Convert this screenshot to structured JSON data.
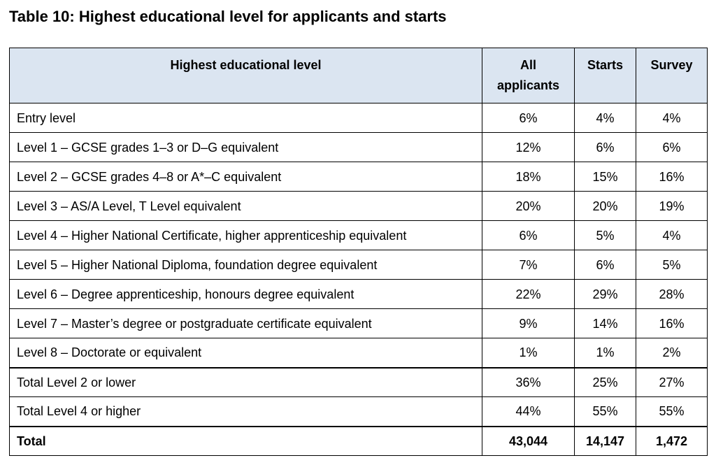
{
  "caption": "Table 10: Highest educational level for applicants and starts",
  "table": {
    "headers": {
      "level": "Highest educational level",
      "all_line1": "All",
      "all_line2": "applicants",
      "starts": "Starts",
      "survey": "Survey"
    },
    "rows": [
      {
        "level": "Entry level",
        "all": "6%",
        "starts": "4%",
        "survey": "4%"
      },
      {
        "level": "Level 1 – GCSE grades 1–3 or D–G equivalent",
        "all": "12%",
        "starts": "6%",
        "survey": "6%"
      },
      {
        "level": "Level 2 – GCSE grades 4–8 or A*–C equivalent",
        "all": "18%",
        "starts": "15%",
        "survey": "16%"
      },
      {
        "level": "Level 3 – AS/A Level, T Level equivalent",
        "all": "20%",
        "starts": "20%",
        "survey": "19%"
      },
      {
        "level": "Level 4 – Higher National Certificate, higher apprenticeship equivalent",
        "all": "6%",
        "starts": "5%",
        "survey": "4%"
      },
      {
        "level": "Level 5 – Higher National Diploma, foundation degree equivalent",
        "all": "7%",
        "starts": "6%",
        "survey": "5%"
      },
      {
        "level": "Level 6 – Degree apprenticeship, honours degree equivalent",
        "all": "22%",
        "starts": "29%",
        "survey": "28%"
      },
      {
        "level": "Level 7 – Master’s degree or postgraduate certificate equivalent",
        "all": "9%",
        "starts": "14%",
        "survey": "16%"
      },
      {
        "level": "Level 8 – Doctorate or equivalent",
        "all": "1%",
        "starts": "1%",
        "survey": "2%"
      },
      {
        "level": "Total Level 2 or lower",
        "all": "36%",
        "starts": "25%",
        "survey": "27%"
      },
      {
        "level": "Total Level 4 or higher",
        "all": "44%",
        "starts": "55%",
        "survey": "55%"
      },
      {
        "level": "Total",
        "all": "43,044",
        "starts": "14,147",
        "survey": "1,472"
      }
    ]
  }
}
